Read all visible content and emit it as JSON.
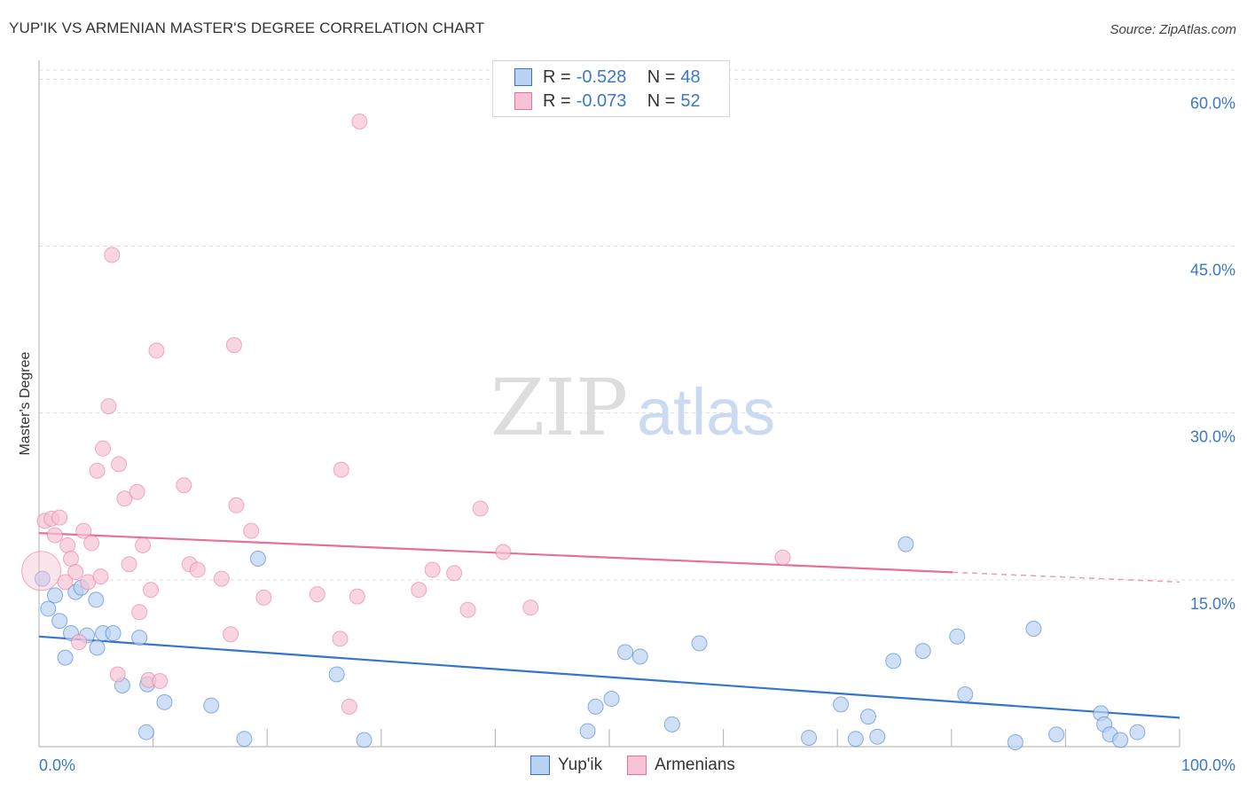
{
  "header": {
    "title": "YUP'IK VS ARMENIAN MASTER'S DEGREE CORRELATION CHART",
    "source": "Source: ZipAtlas.com"
  },
  "watermark": {
    "zip": "ZIP",
    "atlas": "atlas"
  },
  "colors": {
    "blue": "#3474d0",
    "blue_fill": "#b9d2f2",
    "pink": "#e4709b",
    "pink_fill": "#f7c3d5",
    "value_text": "#3b78c7"
  },
  "legend": {
    "series": [
      {
        "r_label": "R =",
        "r_value": "-0.528",
        "n_label": "N =",
        "n_value": "48"
      },
      {
        "r_label": "R =",
        "r_value": "-0.073",
        "n_label": "N =",
        "n_value": "52"
      }
    ]
  },
  "chart_data": {
    "type": "scatter",
    "title": "YUP'IK VS ARMENIAN MASTER'S DEGREE CORRELATION CHART",
    "xlabel": "",
    "ylabel": "Master's Degree",
    "xlim": [
      0,
      100
    ],
    "ylim": [
      0,
      61.7
    ],
    "x_tick_labels": [
      "0.0%",
      "100.0%"
    ],
    "y_ticks": [
      15,
      30,
      45,
      60
    ],
    "y_tick_labels": [
      "15.0%",
      "30.0%",
      "45.0%",
      "60.0%"
    ],
    "legend_position": "top-center",
    "series": [
      {
        "name": "Yup'ik",
        "color": "#3474d0",
        "r": -0.528,
        "n": 48,
        "trend": {
          "x0": 0,
          "y0": 9.9,
          "x1": 100,
          "y1": 2.6
        },
        "points": [
          [
            0.3,
            15.1
          ],
          [
            0.8,
            12.4
          ],
          [
            1.4,
            13.6
          ],
          [
            1.8,
            11.3
          ],
          [
            2.3,
            8.0
          ],
          [
            2.8,
            10.2
          ],
          [
            3.2,
            13.9
          ],
          [
            3.7,
            14.3
          ],
          [
            4.2,
            10.0
          ],
          [
            5.1,
            8.9
          ],
          [
            5.0,
            13.2
          ],
          [
            5.6,
            10.2
          ],
          [
            6.5,
            10.2
          ],
          [
            7.3,
            5.5
          ],
          [
            8.8,
            9.8
          ],
          [
            9.5,
            5.6
          ],
          [
            11.0,
            4.0
          ],
          [
            9.4,
            1.3
          ],
          [
            15.1,
            3.7
          ],
          [
            18.0,
            0.7
          ],
          [
            19.2,
            16.9
          ],
          [
            26.1,
            6.5
          ],
          [
            28.5,
            0.6
          ],
          [
            48.1,
            1.4
          ],
          [
            48.8,
            3.6
          ],
          [
            50.2,
            4.3
          ],
          [
            51.4,
            8.5
          ],
          [
            52.7,
            8.1
          ],
          [
            55.5,
            2.0
          ],
          [
            57.9,
            9.3
          ],
          [
            67.5,
            0.8
          ],
          [
            70.3,
            3.8
          ],
          [
            72.7,
            2.7
          ],
          [
            73.5,
            0.9
          ],
          [
            74.9,
            7.7
          ],
          [
            71.6,
            0.7
          ],
          [
            76.0,
            18.2
          ],
          [
            77.5,
            8.6
          ],
          [
            80.5,
            9.9
          ],
          [
            81.2,
            4.7
          ],
          [
            85.6,
            0.4
          ],
          [
            87.2,
            10.6
          ],
          [
            89.2,
            1.1
          ],
          [
            93.1,
            3.0
          ],
          [
            93.4,
            2.0
          ],
          [
            93.9,
            1.1
          ],
          [
            94.8,
            0.6
          ],
          [
            96.3,
            1.3
          ]
        ]
      },
      {
        "name": "Armenians",
        "color": "#e4709b",
        "r": -0.073,
        "n": 52,
        "trend": {
          "x0": 0,
          "y0": 19.2,
          "x1": 100,
          "y1": 14.8,
          "solid_until_x": 80.1
        },
        "points": [
          [
            0.2,
            15.8
          ],
          [
            0.5,
            20.3
          ],
          [
            1.1,
            20.5
          ],
          [
            1.4,
            19.0
          ],
          [
            1.8,
            20.6
          ],
          [
            2.3,
            14.8
          ],
          [
            2.5,
            18.1
          ],
          [
            2.8,
            16.9
          ],
          [
            3.2,
            15.7
          ],
          [
            3.5,
            9.4
          ],
          [
            3.9,
            19.4
          ],
          [
            4.3,
            14.8
          ],
          [
            4.6,
            18.3
          ],
          [
            5.1,
            24.8
          ],
          [
            5.4,
            15.3
          ],
          [
            5.6,
            26.8
          ],
          [
            6.1,
            30.6
          ],
          [
            6.4,
            44.2
          ],
          [
            6.9,
            6.5
          ],
          [
            7.0,
            25.4
          ],
          [
            7.5,
            22.3
          ],
          [
            7.9,
            16.4
          ],
          [
            8.6,
            22.9
          ],
          [
            8.8,
            12.1
          ],
          [
            9.1,
            18.1
          ],
          [
            9.6,
            6.0
          ],
          [
            9.8,
            14.1
          ],
          [
            10.3,
            35.6
          ],
          [
            10.6,
            5.9
          ],
          [
            12.7,
            23.5
          ],
          [
            13.2,
            16.4
          ],
          [
            13.9,
            15.9
          ],
          [
            16.0,
            15.1
          ],
          [
            16.8,
            10.1
          ],
          [
            17.1,
            36.1
          ],
          [
            17.3,
            21.7
          ],
          [
            18.6,
            19.4
          ],
          [
            19.7,
            13.4
          ],
          [
            24.4,
            13.7
          ],
          [
            26.5,
            24.9
          ],
          [
            27.2,
            3.6
          ],
          [
            27.9,
            13.5
          ],
          [
            28.1,
            56.2
          ],
          [
            33.3,
            14.1
          ],
          [
            34.5,
            15.9
          ],
          [
            36.4,
            15.6
          ],
          [
            37.6,
            12.3
          ],
          [
            38.7,
            21.4
          ],
          [
            40.7,
            17.5
          ],
          [
            43.1,
            12.5
          ],
          [
            65.2,
            17.0
          ],
          [
            26.4,
            9.7
          ]
        ]
      }
    ]
  },
  "bottom_legend": {
    "items": [
      {
        "label": "Yup'ik"
      },
      {
        "label": "Armenians"
      }
    ]
  }
}
